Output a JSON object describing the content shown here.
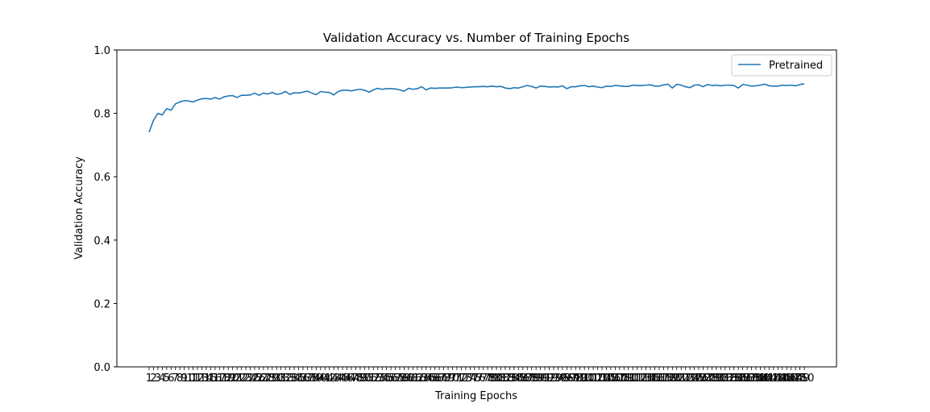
{
  "chart_data": {
    "type": "line",
    "title": "Validation Accuracy vs. Number of Training Epochs",
    "xlabel": "Training Epochs",
    "ylabel": "Validation Accuracy",
    "ylim": [
      0,
      1
    ],
    "yticks": [
      "0.0",
      "0.2",
      "0.4",
      "0.6",
      "0.8",
      "1.0"
    ],
    "x_start": 1,
    "x_end": 150,
    "grid": false,
    "legend_position": "top-right",
    "series": [
      {
        "name": "Pretrained",
        "color": "#1f77b4",
        "values": [
          0.741,
          0.778,
          0.8,
          0.795,
          0.815,
          0.81,
          0.83,
          0.836,
          0.84,
          0.839,
          0.836,
          0.842,
          0.846,
          0.847,
          0.845,
          0.85,
          0.845,
          0.852,
          0.855,
          0.856,
          0.85,
          0.857,
          0.857,
          0.858,
          0.864,
          0.857,
          0.864,
          0.861,
          0.866,
          0.86,
          0.862,
          0.869,
          0.86,
          0.865,
          0.864,
          0.867,
          0.87,
          0.864,
          0.859,
          0.869,
          0.867,
          0.866,
          0.858,
          0.869,
          0.873,
          0.873,
          0.871,
          0.874,
          0.876,
          0.873,
          0.867,
          0.874,
          0.879,
          0.876,
          0.878,
          0.878,
          0.877,
          0.874,
          0.87,
          0.879,
          0.876,
          0.878,
          0.884,
          0.874,
          0.88,
          0.879,
          0.88,
          0.88,
          0.88,
          0.881,
          0.883,
          0.881,
          0.882,
          0.883,
          0.884,
          0.884,
          0.885,
          0.884,
          0.886,
          0.884,
          0.885,
          0.88,
          0.878,
          0.881,
          0.88,
          0.884,
          0.888,
          0.885,
          0.88,
          0.886,
          0.885,
          0.883,
          0.884,
          0.883,
          0.887,
          0.878,
          0.884,
          0.884,
          0.887,
          0.888,
          0.884,
          0.886,
          0.883,
          0.881,
          0.886,
          0.885,
          0.888,
          0.887,
          0.885,
          0.885,
          0.889,
          0.888,
          0.888,
          0.889,
          0.89,
          0.886,
          0.886,
          0.89,
          0.892,
          0.88,
          0.892,
          0.889,
          0.884,
          0.881,
          0.889,
          0.89,
          0.884,
          0.891,
          0.888,
          0.889,
          0.887,
          0.889,
          0.889,
          0.888,
          0.88,
          0.891,
          0.889,
          0.886,
          0.887,
          0.889,
          0.892,
          0.887,
          0.886,
          0.886,
          0.889,
          0.888,
          0.889,
          0.887,
          0.891,
          0.893
        ]
      }
    ]
  }
}
